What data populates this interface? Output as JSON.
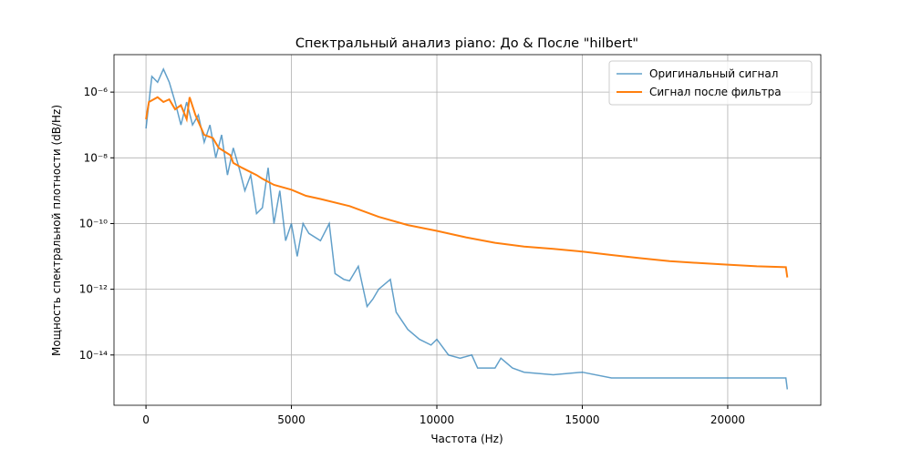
{
  "chart_data": {
    "type": "line",
    "title": "Спектральный анализ piano: До & После \"hilbert\"",
    "x_label": "Частота (Hz)",
    "y_label": "Мощность спектральной плотности (dB/Hz)",
    "log_y": true,
    "grid": true,
    "legend": "upper right",
    "xlim": [
      -1100,
      23200
    ],
    "xticks": [
      0,
      5000,
      10000,
      15000,
      20000
    ],
    "ylim": [
      2.95e-16,
      1.38e-05
    ],
    "yticks": [
      {
        "value": 1e-14,
        "label": "10⁻¹⁴"
      },
      {
        "value": 1e-12,
        "label": "10⁻¹²"
      },
      {
        "value": 1e-10,
        "label": "10⁻¹⁰"
      },
      {
        "value": 1e-08,
        "label": "10⁻⁸"
      },
      {
        "value": 1e-06,
        "label": "10⁻⁶"
      }
    ],
    "series": [
      {
        "name": "Оригинальный сигнал",
        "color": "#1f77b4",
        "width": 1.5,
        "opacity": 0.7,
        "x": [
          0,
          200,
          400,
          600,
          800,
          1000,
          1200,
          1400,
          1600,
          1800,
          2000,
          2200,
          2400,
          2600,
          2800,
          3000,
          3200,
          3400,
          3600,
          3800,
          4000,
          4200,
          4400,
          4600,
          4800,
          5000,
          5200,
          5400,
          5600,
          6000,
          6300,
          6500,
          6800,
          7000,
          7300,
          7600,
          7800,
          8000,
          8400,
          8600,
          9000,
          9400,
          9800,
          10000,
          10400,
          10800,
          11200,
          11400,
          12000,
          12200,
          12600,
          13000,
          14000,
          15000,
          16000,
          18000,
          20000,
          22000,
          22050
        ],
        "values": [
          7.8e-08,
          3e-06,
          2e-06,
          5e-06,
          2e-06,
          5e-07,
          1e-07,
          5e-07,
          1e-07,
          2e-07,
          3e-08,
          1e-07,
          1e-08,
          5e-08,
          3e-09,
          2e-08,
          5e-09,
          1e-09,
          3e-09,
          2e-10,
          3e-10,
          5e-09,
          1e-10,
          1e-09,
          3e-11,
          1e-10,
          1e-11,
          1e-10,
          5e-11,
          3e-11,
          1e-10,
          3e-12,
          2e-12,
          1.8e-12,
          5e-12,
          3e-13,
          5e-13,
          1e-12,
          2e-12,
          2e-13,
          6e-14,
          3e-14,
          2e-14,
          3e-14,
          1e-14,
          8e-15,
          1e-14,
          4e-15,
          4e-15,
          8e-15,
          4e-15,
          3e-15,
          2.5e-15,
          3e-15,
          2e-15,
          2e-15,
          2e-15,
          2e-15,
          9e-16
        ]
      },
      {
        "name": "Сигнал после фильтра",
        "color": "#ff7f0e",
        "width": 2,
        "opacity": 1,
        "x": [
          0,
          100,
          400,
          600,
          800,
          1000,
          1200,
          1400,
          1500,
          1700,
          2000,
          2300,
          2500,
          2900,
          3000,
          3300,
          3800,
          4000,
          4400,
          5000,
          5500,
          6000,
          7000,
          8000,
          9000,
          10000,
          11000,
          12000,
          13000,
          14000,
          15000,
          16000,
          17000,
          18000,
          19000,
          20000,
          21000,
          22000,
          22050
        ],
        "values": [
          1.5e-07,
          5e-07,
          7e-07,
          5e-07,
          6e-07,
          3e-07,
          4e-07,
          1.5e-07,
          7e-07,
          2e-07,
          5e-08,
          4e-08,
          2e-08,
          1.2e-08,
          7e-09,
          5e-09,
          3e-09,
          2.3e-09,
          1.5e-09,
          1.07e-09,
          7e-10,
          5.6e-10,
          3.4e-10,
          1.6e-10,
          9e-11,
          6e-11,
          3.8e-11,
          2.6e-11,
          2e-11,
          1.7e-11,
          1.4e-11,
          1.1e-11,
          8.8e-12,
          7.2e-12,
          6.3e-12,
          5.6e-12,
          5e-12,
          4.7e-12,
          2.3e-12
        ]
      }
    ]
  }
}
